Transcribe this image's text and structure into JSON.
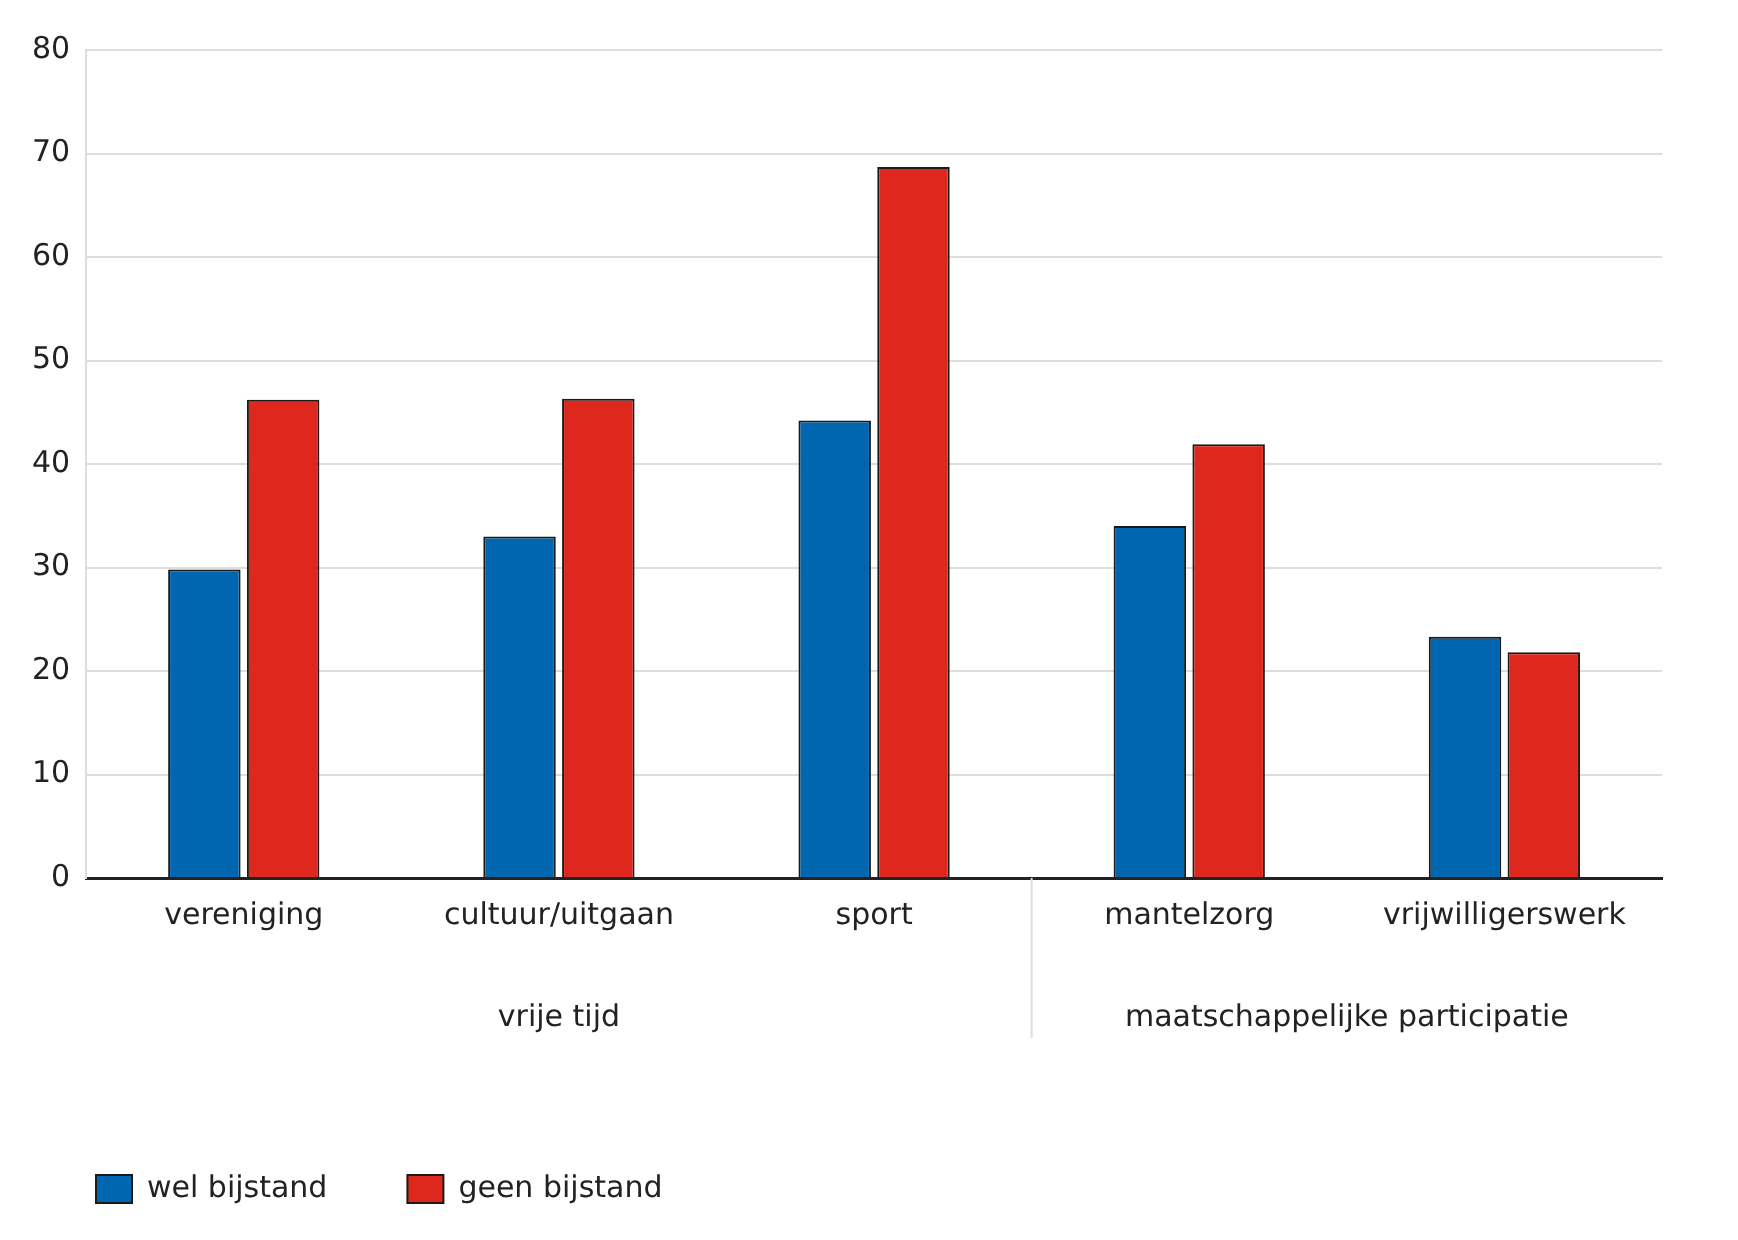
{
  "chart_data": {
    "type": "bar",
    "categories": [
      "vereniging",
      "cultuur/uitgaan",
      "sport",
      "mantelzorg",
      "vrijwilligerswerk"
    ],
    "series": [
      {
        "name": "wel bijstand",
        "color": "#0066b0",
        "values": [
          29.8,
          33.0,
          44.2,
          34.0,
          23.3
        ]
      },
      {
        "name": "geen bijstand",
        "color": "#de281e",
        "values": [
          46.2,
          46.3,
          68.7,
          41.9,
          21.8
        ]
      }
    ],
    "annotations": [
      "vrije tijd",
      "maatschappelijke participatie"
    ],
    "ylim": [
      0,
      80
    ],
    "yticks": [
      0,
      10,
      20,
      30,
      40,
      50,
      60,
      70,
      80
    ],
    "grid": "y",
    "legend": "bottom left"
  }
}
